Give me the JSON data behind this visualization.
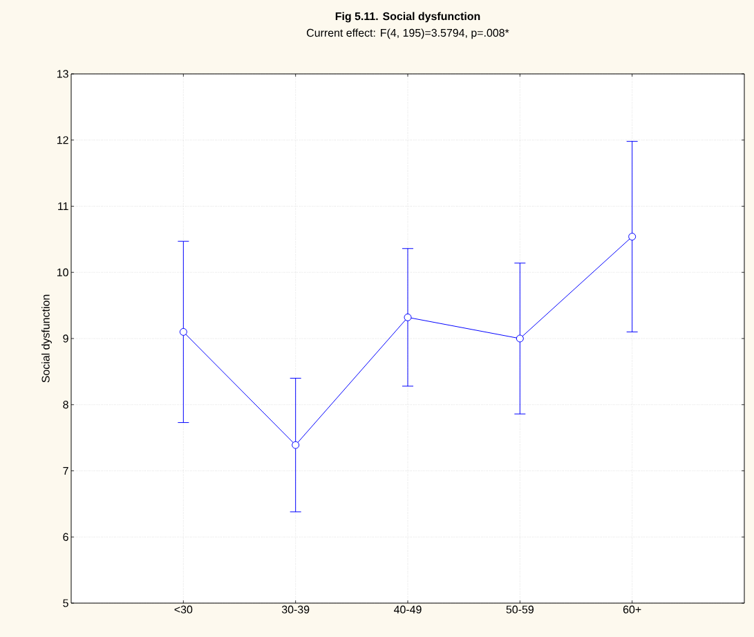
{
  "chart_data": {
    "type": "line",
    "title": "Fig 5.11. Social dysfunction",
    "subtitle": "Current effect: F(4, 195)=3.5794, p=.008*",
    "ylabel": "Social dysfunction",
    "categories": [
      "<30",
      "30-39",
      "40-49",
      "50-59",
      "60+"
    ],
    "values": [
      9.1,
      7.39,
      9.32,
      9.0,
      10.54
    ],
    "errors": [
      1.37,
      1.01,
      1.04,
      1.14,
      1.44
    ],
    "color": "#0000ff",
    "marker": "circle",
    "line_style": "solid",
    "grid": true,
    "ylim": [
      5,
      13
    ],
    "yticks": [
      5,
      6,
      7,
      8,
      9,
      10,
      11,
      12,
      13
    ]
  }
}
